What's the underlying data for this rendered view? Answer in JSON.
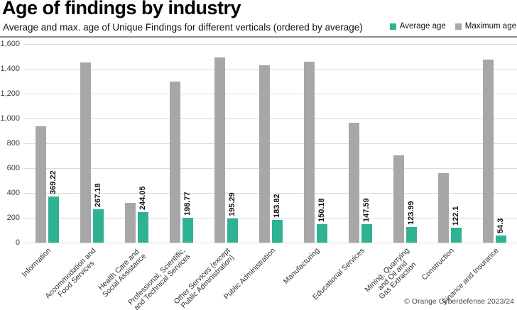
{
  "header": {
    "title": "Age of findings by industry",
    "subtitle": "Average and max. age of Unique Findings for different verticals (ordered by average)"
  },
  "legend": {
    "items": [
      {
        "label": "Average age",
        "color": "#2fb294"
      },
      {
        "label": "Maximum age",
        "color": "#a7a7a7"
      }
    ]
  },
  "footer": {
    "credit": "© Orange Cyberdefense 2023/24"
  },
  "chart_data": {
    "type": "bar",
    "title": "Age of findings by industry",
    "subtitle": "Average and max. age of Unique Findings for different verticals (ordered by average)",
    "categories": [
      "Information",
      "Accommodation and Food Services",
      "Health Care and Social Assistance",
      "Professional, Scientific, and Technical Services",
      "Other Services (except Public Administration)",
      "Public Administration",
      "Manufacturing",
      "Educational Services",
      "Mining, Quarrying and Oil and Gas Extraction",
      "Construction",
      "Finance and Insurance"
    ],
    "categories_display": [
      "Information",
      "Accommodation and\nFood Services",
      "Health Care and\nSocial Assistance",
      "Professional, Scientific,\nand Technical Services",
      "Other Services (except\nPublic Administration)",
      "Public Administration",
      "Manufacturing",
      "Educational Services",
      "Mining, Quarrying\nand Oil and\nGas Extraction",
      "Construction",
      "Finance and Insurance"
    ],
    "series": [
      {
        "name": "Average age",
        "color": "#2fb294",
        "values": [
          369.22,
          267.18,
          244.05,
          198.77,
          195.29,
          183.82,
          150.18,
          147.59,
          123.99,
          122.1,
          54.3
        ],
        "data_labels": [
          "369.22",
          "267.18",
          "244.05",
          "198.77",
          "195.29",
          "183.82",
          "150.18",
          "147.59",
          "123.99",
          "122.1",
          "54.3"
        ]
      },
      {
        "name": "Maximum age",
        "color": "#a7a7a7",
        "values": [
          940,
          1450,
          320,
          1300,
          1490,
          1430,
          1460,
          965,
          705,
          560,
          1475
        ]
      }
    ],
    "ylim": [
      0,
      1600
    ],
    "ytick_interval": 200,
    "yticks": [
      "0",
      "200",
      "400",
      "600",
      "800",
      "1,000",
      "1,200",
      "1,400",
      "1,600"
    ],
    "grid": true,
    "legend_position": "top-right",
    "group_order": [
      "Maximum age",
      "Average age"
    ],
    "xlabel": "",
    "ylabel": ""
  }
}
